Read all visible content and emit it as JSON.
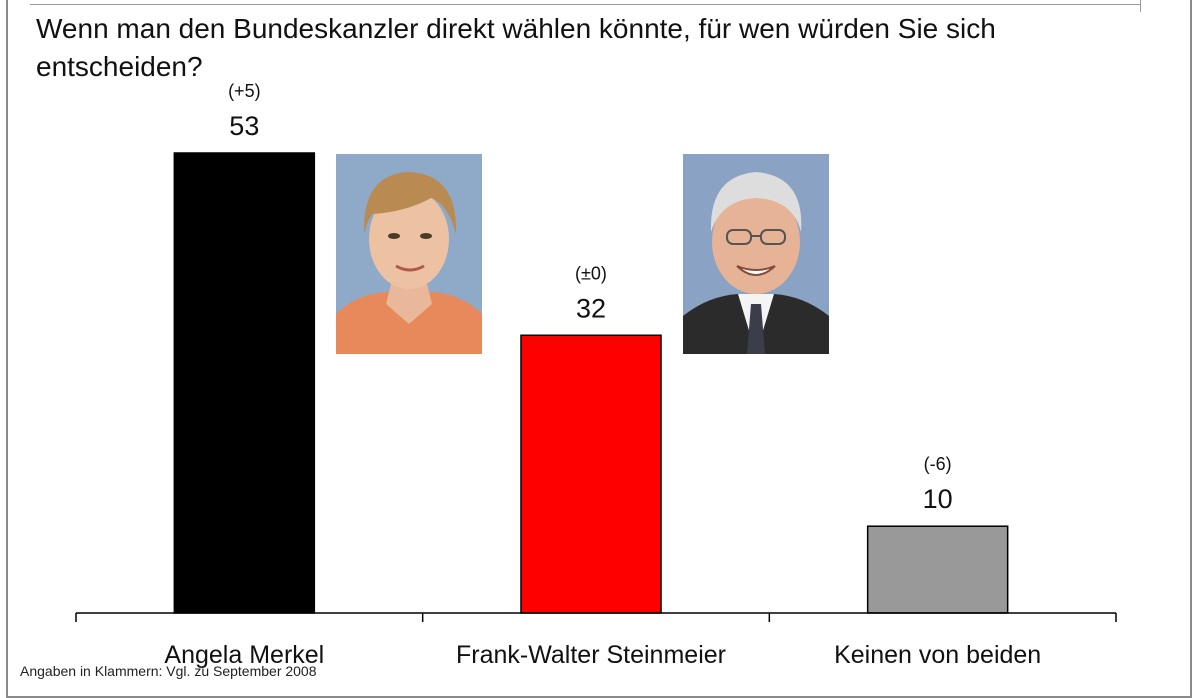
{
  "question": "Wenn man den Bundeskanzler direkt wählen könnte, für wen würden Sie sich entscheiden?",
  "chart_data": {
    "type": "bar",
    "categories": [
      "Angela Merkel",
      "Frank-Walter Steinmeier",
      "Keinen von beiden"
    ],
    "values": [
      53,
      32,
      10
    ],
    "changes": [
      "(+5)",
      "(±0)",
      "(-6)"
    ],
    "colors": [
      "#000000",
      "#ff0000",
      "#999999"
    ],
    "ylim": [
      0,
      53
    ],
    "grid": false
  },
  "footnote": "Angaben in Klammern: Vgl. zu September 2008"
}
